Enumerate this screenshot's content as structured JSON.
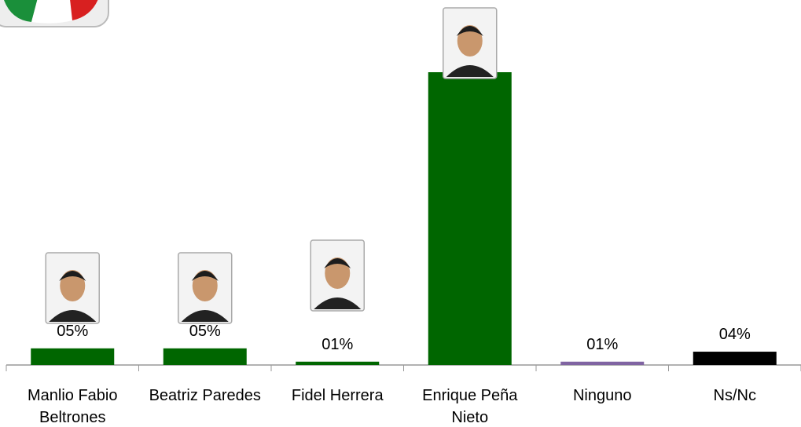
{
  "chart_data": {
    "type": "bar",
    "categories": [
      "Manlio Fabio Beltrones",
      "Beatriz Paredes",
      "Fidel Herrera",
      "Enrique Peña Nieto",
      "Ninguno",
      "Ns/Nc"
    ],
    "values": [
      5,
      5,
      1,
      88,
      1,
      4
    ],
    "value_labels": [
      "05%",
      "05%",
      "01%",
      null,
      "01%",
      "04%"
    ],
    "colors": [
      "#006600",
      "#006600",
      "#006600",
      "#006600",
      "#8064a2",
      "#000000"
    ]
  }
}
